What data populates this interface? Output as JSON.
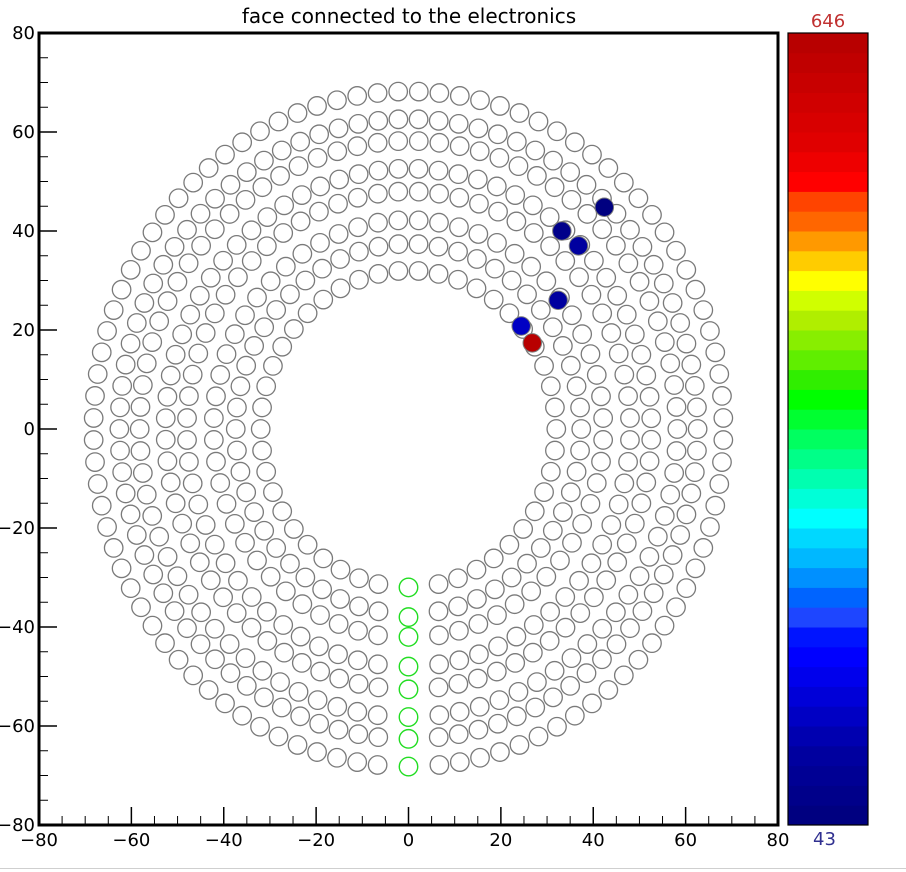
{
  "chart_data": {
    "type": "scatter",
    "title": "face connected to the electronics",
    "xlim": [
      -80,
      80
    ],
    "ylim": [
      -80,
      80
    ],
    "x_ticks": [
      -80,
      -60,
      -40,
      -20,
      0,
      20,
      40,
      60,
      80
    ],
    "y_ticks": [
      -80,
      -60,
      -40,
      -20,
      0,
      20,
      40,
      60,
      80
    ],
    "x_tick_labels": [
      "−80",
      "−60",
      "−40",
      "−20",
      "0",
      "20",
      "40",
      "60",
      "80"
    ],
    "y_tick_labels": [
      "−80",
      "−60",
      "−40",
      "−20",
      "0",
      "20",
      "40",
      "60",
      "80"
    ],
    "xlabel": "",
    "ylabel": "",
    "cell_radius": 2.0,
    "rings": [
      {
        "radius": 32,
        "count": 46
      },
      {
        "radius": 37.4,
        "count": 54
      },
      {
        "radius": 42.2,
        "count": 60
      },
      {
        "radius": 48,
        "count": 68
      },
      {
        "radius": 52.6,
        "count": 76
      },
      {
        "radius": 58.2,
        "count": 82
      },
      {
        "radius": 62.6,
        "count": 90
      },
      {
        "radius": 68.2,
        "count": 96
      }
    ],
    "connector_cells": {
      "x": 0,
      "y": [
        -32,
        -38,
        -42,
        -48,
        -52.6,
        -58.2,
        -62.6,
        -68.2
      ],
      "color": "#22dd22"
    },
    "hits": [
      {
        "x": 26.8,
        "y": 17.4,
        "value": 646
      },
      {
        "x": 24.4,
        "y": 20.8,
        "value": 120
      },
      {
        "x": 32.4,
        "y": 26.0,
        "value": 95
      },
      {
        "x": 33.2,
        "y": 40.0,
        "value": 60
      },
      {
        "x": 36.8,
        "y": 37.0,
        "value": 90
      },
      {
        "x": 42.4,
        "y": 44.8,
        "value": 55
      }
    ],
    "colorbar": {
      "min": 43,
      "max": 646,
      "min_label": "43",
      "max_label": "646",
      "colors": [
        "#000080",
        "#00008a",
        "#000094",
        "#00009f",
        "#0000b0",
        "#0000c4",
        "#0000d8",
        "#0000ec",
        "#0000ff",
        "#0014ff",
        "#1e46ff",
        "#0064ff",
        "#0090ff",
        "#00b8ff",
        "#00d8ff",
        "#00ffff",
        "#00ffd8",
        "#00ffb0",
        "#00ff88",
        "#00ff60",
        "#00ff30",
        "#00ff00",
        "#30ee00",
        "#60ee00",
        "#88ee00",
        "#b0ee00",
        "#d0ff00",
        "#ffff00",
        "#ffcc00",
        "#ff9900",
        "#ff6600",
        "#ff4400",
        "#ff0000",
        "#ee0000",
        "#e00000",
        "#d80000",
        "#d00000",
        "#c80000",
        "#c00000",
        "#b80000"
      ]
    },
    "colors": {
      "cell_outline": "#7a7a7a",
      "frame": "#000000",
      "max_label_color": "#c03030",
      "min_label_color": "#303090"
    }
  }
}
